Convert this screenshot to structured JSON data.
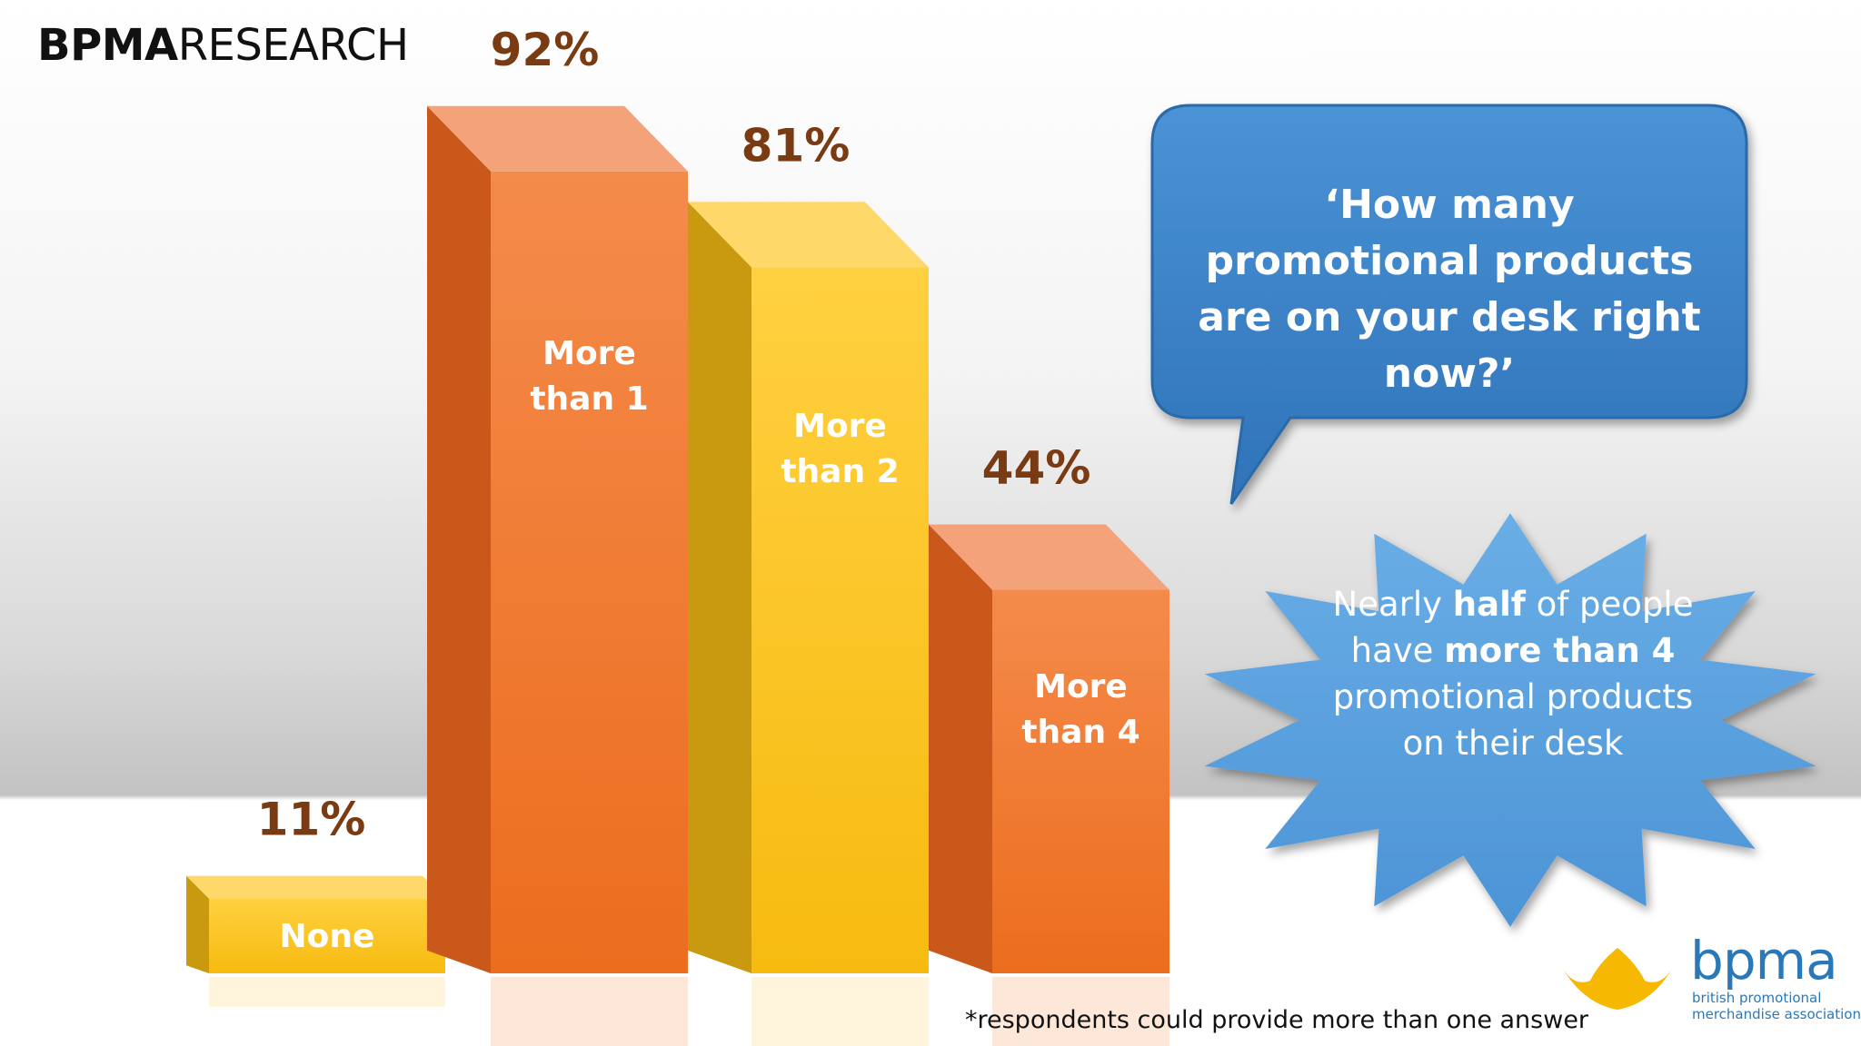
{
  "header": {
    "brand_bold": "BPMA",
    "brand_rest": "RESEARCH"
  },
  "question": "‘How many promotional products are on your desk right now?’",
  "callout": {
    "part1": "Nearly ",
    "bold1": "half",
    "part2": " of people have ",
    "bold2": "more than 4",
    "part3": " promotional products on their desk"
  },
  "footnote": "*respondents could provide more than one answer",
  "logo": {
    "word": "bpma",
    "tagline_line1": "british promotional",
    "tagline_line2": "merchandise association"
  },
  "colors": {
    "orange": "#f07a2a",
    "yellow": "#fcc21b",
    "label_brown": "#7a3a12",
    "bubble_blue": "#3b82c8",
    "star_blue": "#5aa0de"
  },
  "chart_data": {
    "type": "bar",
    "categories": [
      "None",
      "More than 1",
      "More than 2",
      "More than 4"
    ],
    "values": [
      11,
      92,
      81,
      44
    ],
    "data_labels": [
      "11%",
      "92%",
      "81%",
      "44%"
    ],
    "series_colors": [
      "yellow",
      "orange",
      "yellow",
      "orange"
    ],
    "ylim": [
      0,
      100
    ]
  }
}
